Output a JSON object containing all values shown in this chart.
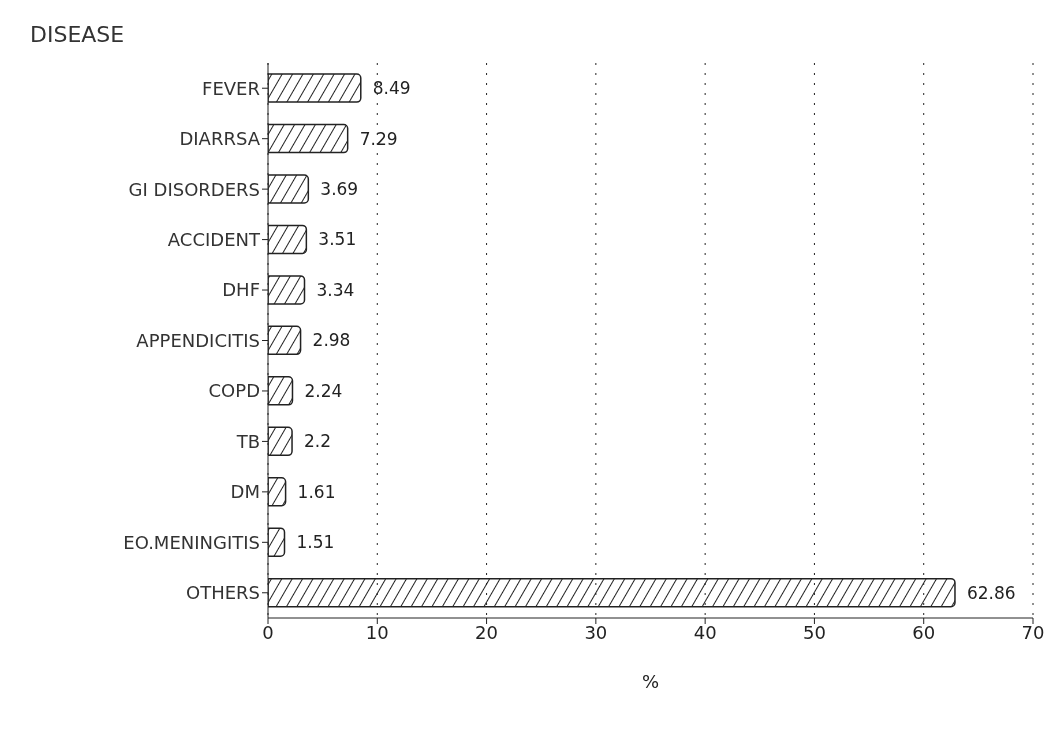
{
  "chart_data": {
    "type": "bar",
    "orientation": "horizontal",
    "ylabel": "DISEASE",
    "xlabel": "%",
    "categories": [
      "FEVER",
      "DIARRSA",
      "GI DISORDERS",
      "ACCIDENT",
      "DHF",
      "APPENDICITIS",
      "COPD",
      "TB",
      "DM",
      "EO.MENINGITIS",
      "OTHERS"
    ],
    "values": [
      8.49,
      7.29,
      3.69,
      3.51,
      3.34,
      2.98,
      2.24,
      2.2,
      1.61,
      1.51,
      62.86
    ],
    "color": "#222222",
    "xlim": [
      0,
      70
    ],
    "xticks": [
      0,
      10,
      20,
      30,
      40,
      50,
      60,
      70
    ],
    "grid": "x",
    "data_labels": true
  }
}
